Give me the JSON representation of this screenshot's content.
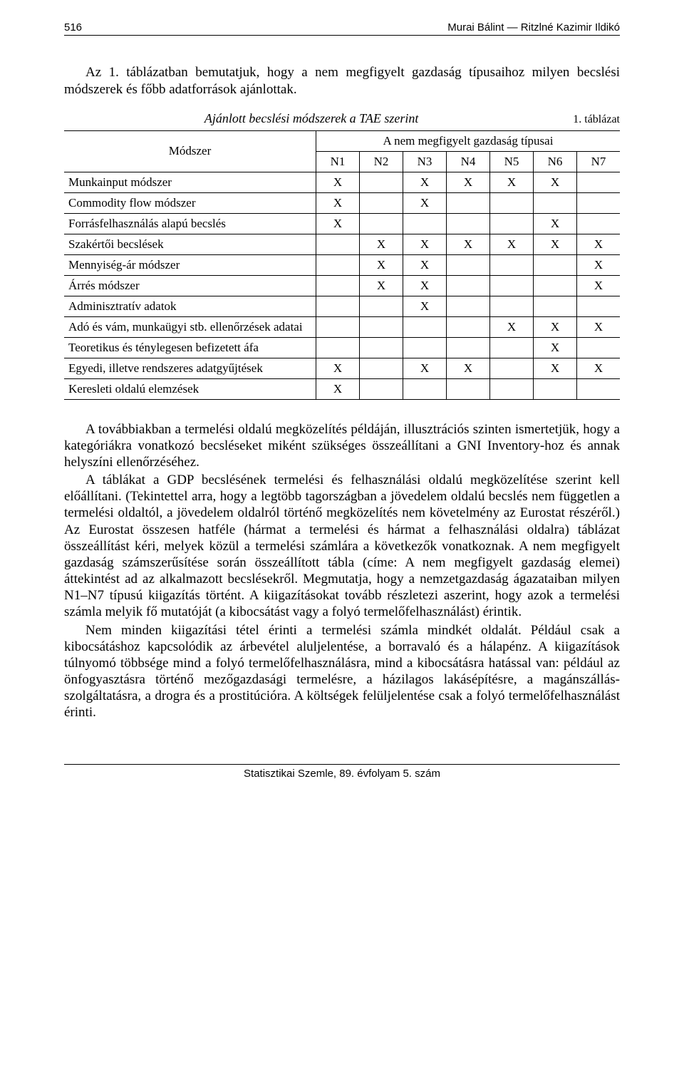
{
  "header": {
    "page_number": "516",
    "authors": "Murai Bálint — Ritzlné Kazimir Ildikó"
  },
  "intro": "Az 1. táblázatban bemutatjuk, hogy a nem megfigyelt gazdaság típusaihoz milyen becslési módszerek és főbb adatforrások ajánlottak.",
  "table": {
    "number": "1. táblázat",
    "title": "Ajánlott becslési módszerek a TAE szerint",
    "row_header": "Módszer",
    "group_header": "A nem megfigyelt gazdaság típusai",
    "columns": [
      "N1",
      "N2",
      "N3",
      "N4",
      "N5",
      "N6",
      "N7"
    ],
    "rows": [
      {
        "label": "Munkainput módszer",
        "marks": [
          "X",
          "",
          "X",
          "X",
          "X",
          "X",
          ""
        ]
      },
      {
        "label": "Commodity flow módszer",
        "marks": [
          "X",
          "",
          "X",
          "",
          "",
          "",
          ""
        ]
      },
      {
        "label": "Forrásfelhasználás alapú becslés",
        "marks": [
          "X",
          "",
          "",
          "",
          "",
          "X",
          ""
        ]
      },
      {
        "label": "Szakértői becslések",
        "marks": [
          "",
          "X",
          "X",
          "X",
          "X",
          "X",
          "X"
        ]
      },
      {
        "label": "Mennyiség-ár módszer",
        "marks": [
          "",
          "X",
          "X",
          "",
          "",
          "",
          "X"
        ]
      },
      {
        "label": "Árrés módszer",
        "marks": [
          "",
          "X",
          "X",
          "",
          "",
          "",
          "X"
        ]
      },
      {
        "label": "Adminisztratív adatok",
        "marks": [
          "",
          "",
          "X",
          "",
          "",
          "",
          ""
        ]
      },
      {
        "label": "Adó és vám, munkaügyi stb. ellenőrzések adatai",
        "marks": [
          "",
          "",
          "",
          "",
          "X",
          "X",
          "X"
        ]
      },
      {
        "label": "Teoretikus és ténylegesen befizetett áfa",
        "marks": [
          "",
          "",
          "",
          "",
          "",
          "X",
          ""
        ]
      },
      {
        "label": "Egyedi, illetve rendszeres adatgyűjtések",
        "marks": [
          "X",
          "",
          "X",
          "X",
          "",
          "X",
          "X"
        ]
      },
      {
        "label": "Keresleti oldalú elemzések",
        "marks": [
          "X",
          "",
          "",
          "",
          "",
          "",
          ""
        ]
      }
    ]
  },
  "paragraphs": [
    "A továbbiakban a termelési oldalú megközelítés példáján, illusztrációs szinten ismertetjük, hogy a kategóriákra vonatkozó becsléseket miként szükséges összeállítani a GNI Inventory-hoz és annak helyszíni ellenőrzéséhez.",
    "A táblákat a GDP becslésének termelési és felhasználási oldalú megközelítése szerint kell előállítani. (Tekintettel arra, hogy a legtöbb tagországban a jövedelem oldalú becslés nem független a termelési oldaltól, a jövedelem oldalról történő megközelítés nem követelmény az Eurostat részéről.) Az Eurostat összesen hatféle (hármat a termelési és hármat a felhasználási oldalra) táblázat összeállítást kéri, melyek közül a termelési számlára a következők vonatkoznak. A nem megfigyelt gazdaság számszerűsítése során összeállított tábla (címe: A nem megfigyelt gazdaság elemei) áttekintést ad az alkalmazott becslésekről. Megmutatja, hogy a nemzetgazdaság ágazataiban milyen N1–N7 típusú kiigazítás történt. A kiigazításokat tovább részletezi aszerint, hogy azok a termelési számla melyik fő mutatóját (a kibocsátást vagy a folyó termelőfelhasználást) érintik.",
    "Nem minden kiigazítási tétel érinti a termelési számla mindkét oldalát. Például csak a kibocsátáshoz kapcsolódik az árbevétel aluljelentése, a borravaló és a hálapénz. A kiigazítások túlnyomó többsége mind a folyó termelőfelhasználásra, mind a kibocsátásra hatással van: például az önfogyasztásra történő mezőgazdasági termelésre, a házilagos lakásépítésre, a magánszállás-szolgáltatásra, a drogra és a prostitúcióra. A költségek felüljelentése csak a folyó termelőfelhasználást érinti."
  ],
  "footer": "Statisztikai Szemle, 89. évfolyam 5. szám"
}
